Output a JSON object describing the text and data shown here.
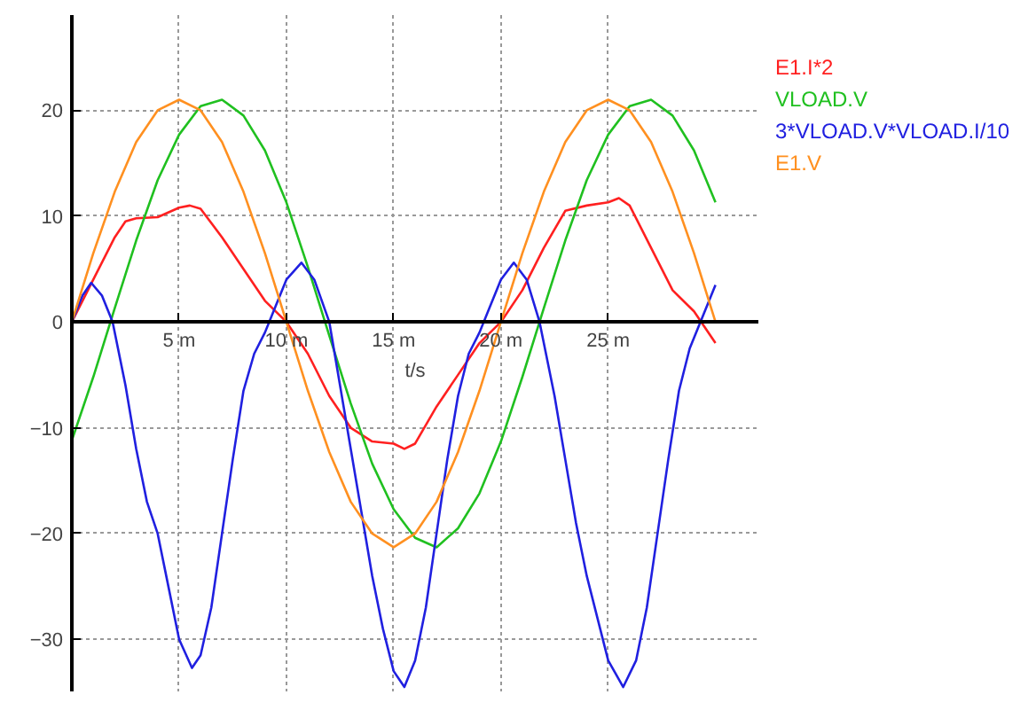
{
  "chart_data": {
    "type": "line",
    "xlabel": "t/s",
    "xlim": [
      0,
      32
    ],
    "ylim": [
      -35,
      29
    ],
    "xticks": [
      {
        "value": 5,
        "label": "5 m"
      },
      {
        "value": 10,
        "label": "10 m"
      },
      {
        "value": 15,
        "label": "15 m"
      },
      {
        "value": 20,
        "label": "20 m"
      },
      {
        "value": 25,
        "label": "25 m"
      }
    ],
    "yticks": [
      -30,
      -20,
      -10,
      0,
      10,
      20
    ],
    "grid": true,
    "legend": "top right",
    "line_style": "solid",
    "marker": "none",
    "series": [
      {
        "name": "E1.I*2",
        "color": "#ff2020",
        "x": [
          0,
          1,
          2,
          2.5,
          3,
          4,
          5,
          5.5,
          6,
          7,
          8,
          9,
          10,
          11,
          12,
          13,
          14,
          15,
          15.5,
          16,
          17,
          18,
          19,
          20,
          21,
          22,
          23,
          24,
          25,
          25.5,
          26,
          27,
          28,
          29,
          30
        ],
        "values": [
          0,
          4,
          8,
          9.5,
          9.8,
          9.9,
          10.8,
          11,
          10.7,
          8,
          5,
          2,
          0,
          -3,
          -7,
          -10,
          -11.3,
          -11.5,
          -12,
          -11.5,
          -8,
          -5,
          -2,
          0,
          3,
          7,
          10.5,
          11,
          11.3,
          11.7,
          11,
          7,
          3,
          1,
          -2
        ]
      },
      {
        "name": "VLOAD.V",
        "color": "#20c020",
        "x": [
          0,
          1,
          2,
          3,
          4,
          5,
          6,
          7,
          8,
          9,
          10,
          11,
          12,
          13,
          14,
          15,
          16,
          17,
          18,
          19,
          20,
          21,
          22,
          23,
          24,
          25,
          26,
          27,
          28,
          29,
          30
        ],
        "values": [
          -11.2,
          -5.2,
          1.3,
          7.7,
          13.4,
          17.7,
          20.4,
          21,
          19.5,
          16.2,
          11.3,
          5.2,
          -1.3,
          -7.7,
          -13.4,
          -17.7,
          -20.4,
          -21.3,
          -19.5,
          -16.2,
          -11.3,
          -5.2,
          1.3,
          7.7,
          13.4,
          17.7,
          20.4,
          21,
          19.5,
          16.2,
          11.3
        ]
      },
      {
        "name": "3*VLOAD.V*VLOAD.I/10",
        "color": "#2020e0",
        "x": [
          0,
          0.5,
          0.9,
          1.4,
          1.9,
          2.5,
          3,
          3.5,
          4,
          4.5,
          5,
          5.6,
          6,
          6.5,
          7,
          7.5,
          8,
          8.5,
          9,
          9.5,
          10,
          10.7,
          11.3,
          12,
          12.5,
          13,
          13.5,
          14,
          14.5,
          15,
          15.5,
          16,
          16.5,
          17,
          17.5,
          18,
          18.5,
          19,
          19.5,
          20,
          20.6,
          21.2,
          21.8,
          22.5,
          23,
          23.5,
          24,
          24.5,
          25,
          25.7,
          26.3,
          26.8,
          27.3,
          27.8,
          28.3,
          28.8,
          29.3,
          30
        ],
        "values": [
          0,
          2.5,
          3.7,
          2.5,
          0,
          -6,
          -12,
          -17,
          -20,
          -25,
          -30,
          -32.7,
          -31.5,
          -27,
          -20,
          -13,
          -6.5,
          -3,
          -1,
          1.5,
          4,
          5.6,
          4,
          0,
          -6,
          -12,
          -18,
          -24,
          -29,
          -33,
          -34.5,
          -32,
          -27,
          -20,
          -13,
          -7,
          -3,
          -1,
          1.5,
          4,
          5.6,
          4,
          0,
          -7,
          -13,
          -19,
          -24,
          -28,
          -32,
          -34.5,
          -32,
          -27,
          -20,
          -13,
          -6.5,
          -2.5,
          0,
          3.5
        ]
      },
      {
        "name": "E1.V",
        "color": "#ff9020",
        "x": [
          0,
          1,
          2,
          3,
          4,
          5,
          6,
          7,
          8,
          9,
          10,
          11,
          12,
          13,
          14,
          15,
          16,
          17,
          18,
          19,
          20,
          21,
          22,
          23,
          24,
          25,
          26,
          27,
          28,
          29,
          30
        ],
        "values": [
          0,
          6.5,
          12.3,
          17,
          20,
          21,
          20,
          17,
          12.3,
          6.5,
          0,
          -6.5,
          -12.3,
          -17,
          -20,
          -21.3,
          -20,
          -17,
          -12.3,
          -6.5,
          0,
          6.5,
          12.3,
          17,
          20,
          21,
          20,
          17,
          12.3,
          6.5,
          0
        ]
      }
    ]
  }
}
